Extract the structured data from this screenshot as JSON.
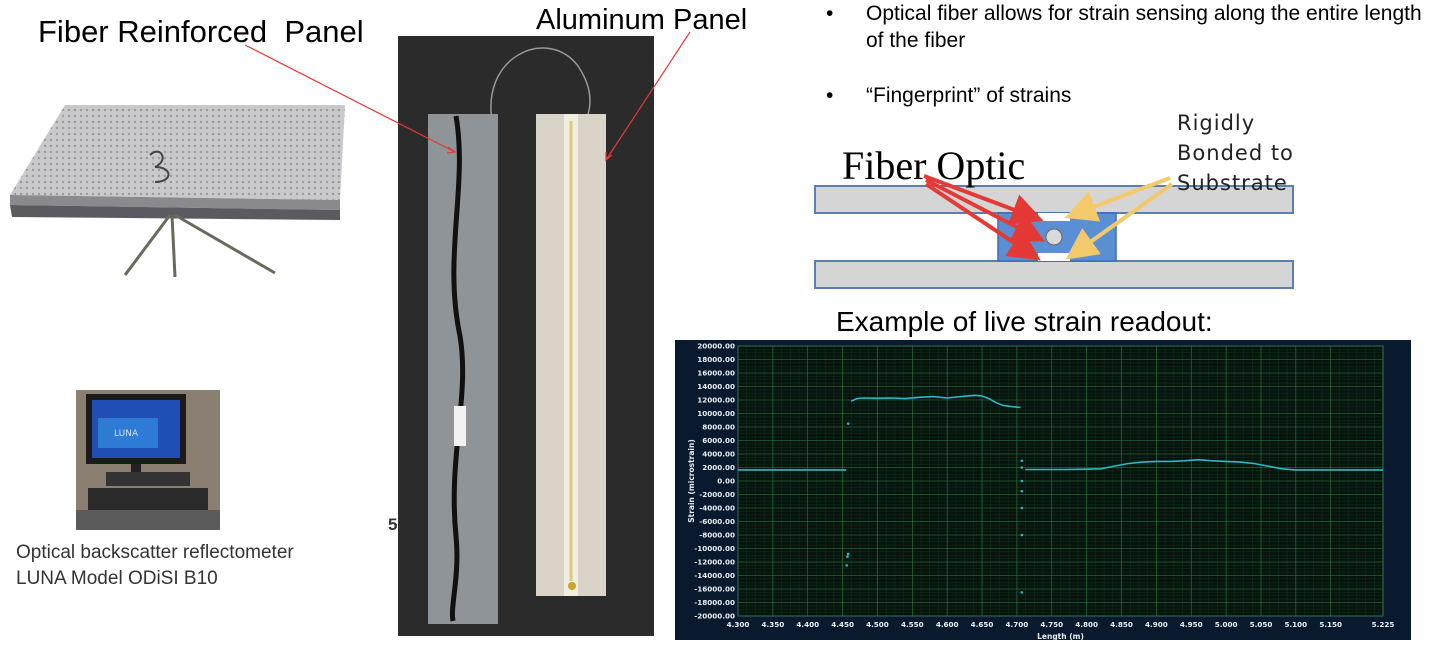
{
  "labels": {
    "fiber_panel": "Fiber Reinforced  Panel",
    "aluminum_panel": "Aluminum Panel",
    "fiber_optic": "Fiber Optic",
    "rigidly_bonded": [
      "Rigidly",
      "Bonded to",
      "Substrate"
    ],
    "example_title": "Example of live strain readout:",
    "caption_line1": "Optical backscatter reflectometer",
    "caption_line2": "LUNA Model ODiSI B10",
    "stray_char": "5"
  },
  "bullets": [
    "Optical fiber allows for strain sensing along the entire length of the fiber",
    "“Fingerprint” of strains"
  ],
  "monitor_text": "LUNA",
  "colors": {
    "plot_bg": "#0a1a2e",
    "plot_line": "#2fb6c9",
    "plot_grid": "#1f5a2e",
    "arrow_red": "#e53935",
    "arrow_yellow": "#f3c96b",
    "substrate_gray": "#d5d5d5",
    "bond_blue": "#5b8fd3"
  },
  "chart_data": {
    "type": "line",
    "xlabel": "Length (m)",
    "ylabel": "Strain (microstrain)",
    "xlim": [
      4.3,
      5.225
    ],
    "ylim": [
      -20000,
      20000
    ],
    "x_ticks": [
      "4.300",
      "4.350",
      "4.400",
      "4.450",
      "4.500",
      "4.550",
      "4.600",
      "4.650",
      "4.700",
      "4.750",
      "4.800",
      "4.850",
      "4.900",
      "4.950",
      "5.000",
      "5.050",
      "5.100",
      "5.150",
      "5.225"
    ],
    "y_ticks": [
      "20000.00",
      "18000.00",
      "16000.00",
      "14000.00",
      "12000.00",
      "10000.00",
      "8000.00",
      "6000.00",
      "4000.00",
      "2000.00",
      "0.00",
      "-2000.00",
      "-4000.00",
      "-6000.00",
      "-8000.00",
      "-10000.00",
      "-12000.00",
      "-14000.00",
      "-16000.00",
      "-18000.00",
      "-20000.00"
    ],
    "grid": true,
    "series": [
      {
        "points": [
          [
            4.3,
            1650
          ],
          [
            4.33,
            1650
          ],
          [
            4.36,
            1650
          ],
          [
            4.39,
            1650
          ],
          [
            4.42,
            1650
          ],
          [
            4.455,
            1650
          ],
          [
            4.462,
            11800
          ],
          [
            4.47,
            12200
          ],
          [
            4.48,
            12300
          ],
          [
            4.5,
            12250
          ],
          [
            4.52,
            12300
          ],
          [
            4.54,
            12200
          ],
          [
            4.56,
            12400
          ],
          [
            4.58,
            12500
          ],
          [
            4.6,
            12300
          ],
          [
            4.62,
            12500
          ],
          [
            4.64,
            12700
          ],
          [
            4.65,
            12600
          ],
          [
            4.66,
            12200
          ],
          [
            4.67,
            11600
          ],
          [
            4.68,
            11200
          ],
          [
            4.695,
            11000
          ],
          [
            4.705,
            10900
          ],
          [
            4.712,
            1700
          ],
          [
            4.74,
            1700
          ],
          [
            4.77,
            1700
          ],
          [
            4.8,
            1750
          ],
          [
            4.82,
            1800
          ],
          [
            4.84,
            2200
          ],
          [
            4.86,
            2600
          ],
          [
            4.88,
            2800
          ],
          [
            4.9,
            2900
          ],
          [
            4.92,
            2900
          ],
          [
            4.94,
            3000
          ],
          [
            4.96,
            3150
          ],
          [
            4.98,
            3000
          ],
          [
            5.0,
            2900
          ],
          [
            5.02,
            2800
          ],
          [
            5.04,
            2600
          ],
          [
            5.06,
            2200
          ],
          [
            5.08,
            1800
          ],
          [
            5.1,
            1650
          ],
          [
            5.15,
            1650
          ],
          [
            5.2,
            1650
          ],
          [
            5.225,
            1650
          ]
        ]
      }
    ],
    "scatter_points": [
      [
        4.458,
        8500
      ],
      [
        4.458,
        -10800
      ],
      [
        4.457,
        -11200
      ],
      [
        4.456,
        -12500
      ],
      [
        4.707,
        3000
      ],
      [
        4.707,
        2000
      ],
      [
        4.707,
        0
      ],
      [
        4.707,
        -1500
      ],
      [
        4.707,
        -4000
      ],
      [
        4.707,
        -8000
      ],
      [
        4.707,
        -16500
      ]
    ]
  }
}
